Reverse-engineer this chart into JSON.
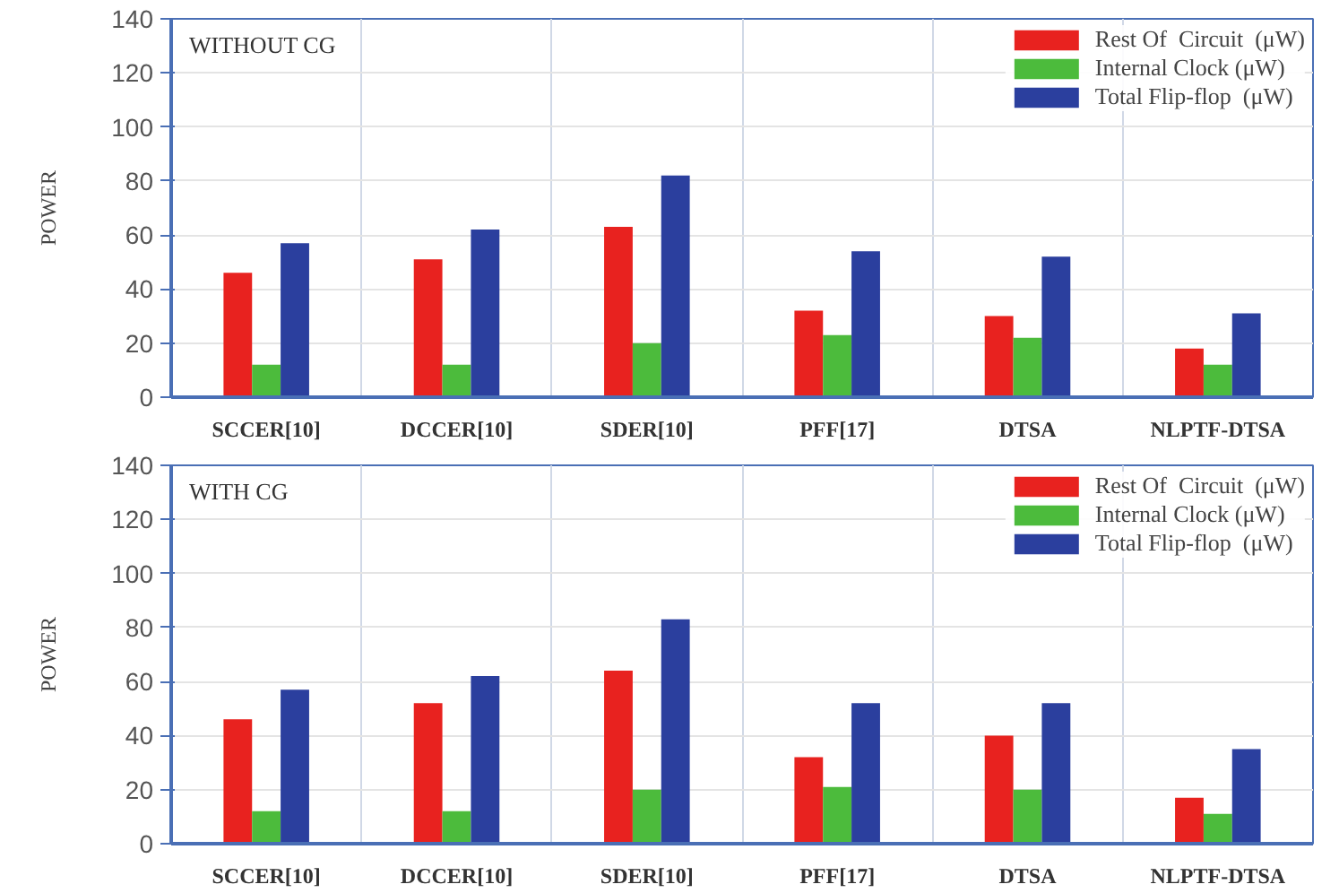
{
  "chart_data": [
    {
      "type": "bar",
      "ylabel": "POWER",
      "annotations": [
        "WITHOUT CG"
      ],
      "categories": [
        "SCCER[10]",
        "DCCER[10]",
        "SDER[10]",
        "PFF[17]",
        "DTSA",
        "NLPTF-DTSA"
      ],
      "series": [
        {
          "name": "Rest Of  Circuit  (μW)",
          "color": "#e8221f",
          "values": [
            46,
            51,
            63,
            32,
            30,
            18
          ]
        },
        {
          "name": "Internal Clock (μW)",
          "color": "#4cbb3c",
          "values": [
            12,
            12,
            20,
            23,
            22,
            12
          ]
        },
        {
          "name": "Total Flip-flop  (μW)",
          "color": "#2b3f9e",
          "values": [
            57,
            62,
            82,
            54,
            52,
            31
          ]
        }
      ],
      "ylim": [
        0,
        140
      ],
      "yticks": [
        0,
        20,
        40,
        60,
        80,
        100,
        120,
        140
      ],
      "grid": true,
      "legend": "top right"
    },
    {
      "type": "bar",
      "ylabel": "POWER",
      "annotations": [
        "WITH CG"
      ],
      "categories": [
        "SCCER[10]",
        "DCCER[10]",
        "SDER[10]",
        "PFF[17]",
        "DTSA",
        "NLPTF-DTSA"
      ],
      "series": [
        {
          "name": "Rest Of  Circuit  (μW)",
          "color": "#e8221f",
          "values": [
            46,
            52,
            64,
            32,
            40,
            17
          ]
        },
        {
          "name": "Internal Clock (μW)",
          "color": "#4cbb3c",
          "values": [
            12,
            12,
            20,
            21,
            20,
            11
          ]
        },
        {
          "name": "Total Flip-flop  (μW)",
          "color": "#2b3f9e",
          "values": [
            57,
            62,
            83,
            52,
            52,
            35
          ]
        }
      ],
      "ylim": [
        0,
        140
      ],
      "yticks": [
        0,
        20,
        40,
        60,
        80,
        100,
        120,
        140
      ],
      "grid": true,
      "legend": "top right"
    }
  ]
}
